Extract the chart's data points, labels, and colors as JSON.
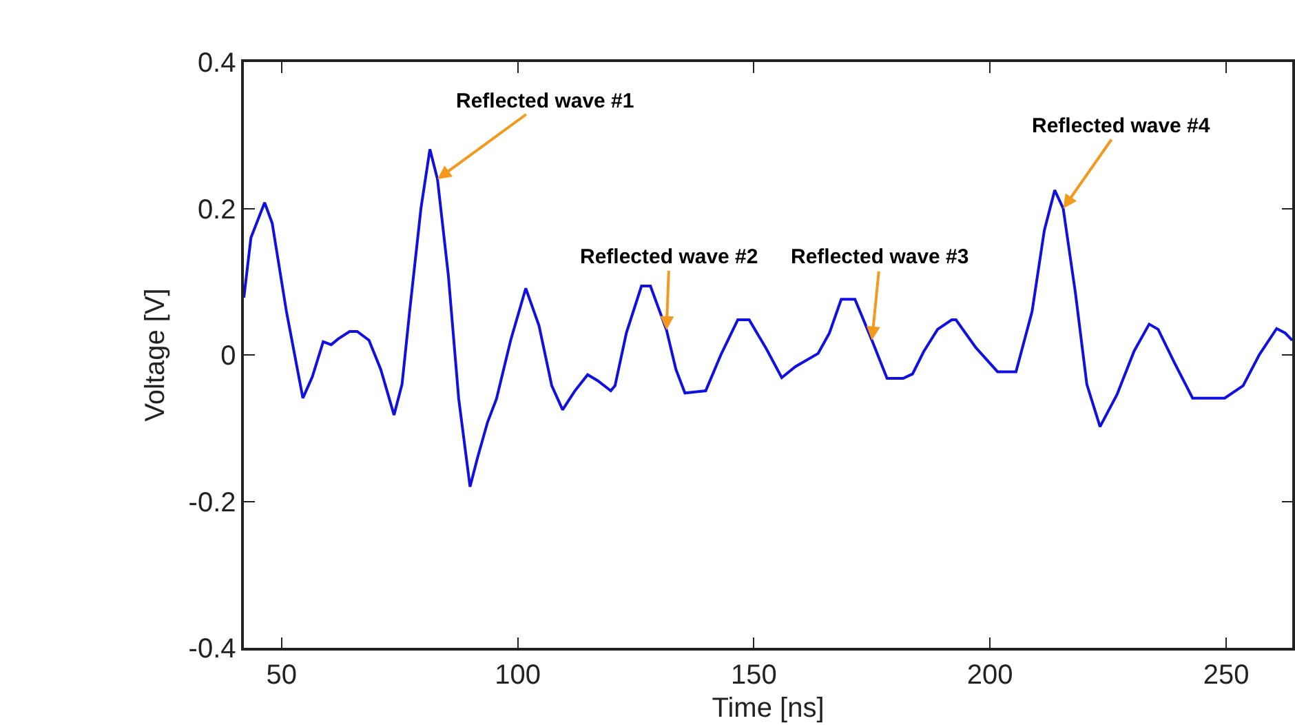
{
  "chart_data": {
    "type": "line",
    "xlabel": "Time [ns]",
    "ylabel": "Voltage [V]",
    "xlim": [
      42,
      264
    ],
    "xticks": [
      50,
      100,
      150,
      200,
      250
    ],
    "ylim": [
      -0.4,
      0.4
    ],
    "yticks": [
      -0.4,
      -0.2,
      0,
      0.2,
      0.4
    ],
    "grid": false,
    "marker": "none",
    "line_style": "solid",
    "series": [
      {
        "color": "#1010e0",
        "x": [
          42,
          43.5,
          46.4,
          48,
          51,
          54.5,
          56.5,
          58.8,
          60.5,
          62,
          64.4,
          66,
          68.5,
          71,
          73.8,
          75.5,
          77.1,
          79.5,
          81.4,
          83,
          85.3,
          87.5,
          89.9,
          91.5,
          93.6,
          95.5,
          98.5,
          101.7,
          104.5,
          107.2,
          109.5,
          112,
          114.8,
          116.9,
          119.7,
          120.6,
          123,
          126.2,
          128.1,
          131.5,
          133.5,
          135.4,
          139.8,
          143,
          146.6,
          149,
          152.5,
          155.9,
          158.8,
          163.6,
          166,
          168.5,
          171.4,
          175,
          178.2,
          181.6,
          183.6,
          186,
          188.9,
          191.9,
          192.8,
          197,
          201.6,
          205.5,
          208.9,
          211.5,
          213.7,
          215.5,
          218.1,
          220.5,
          223.3,
          226.9,
          230.5,
          233.7,
          235.6,
          239,
          242.9,
          249.7,
          253.6,
          257,
          260.7,
          262.5,
          264
        ],
        "values": [
          0.078,
          0.16,
          0.208,
          0.18,
          0.06,
          -0.059,
          -0.03,
          0.018,
          0.014,
          0.022,
          0.032,
          0.032,
          0.02,
          -0.02,
          -0.082,
          -0.04,
          0.059,
          0.2,
          0.281,
          0.24,
          0.109,
          -0.06,
          -0.18,
          -0.14,
          -0.092,
          -0.06,
          0.02,
          0.091,
          0.04,
          -0.042,
          -0.075,
          -0.05,
          -0.027,
          -0.035,
          -0.049,
          -0.042,
          0.03,
          0.094,
          0.094,
          0.034,
          -0.02,
          -0.052,
          -0.049,
          0,
          0.048,
          0.048,
          0.01,
          -0.031,
          -0.016,
          0.002,
          0.03,
          0.076,
          0.076,
          0.02,
          -0.032,
          -0.032,
          -0.026,
          0.005,
          0.035,
          0.048,
          0.048,
          0.01,
          -0.023,
          -0.023,
          0.059,
          0.17,
          0.225,
          0.2,
          0.084,
          -0.04,
          -0.098,
          -0.054,
          0.005,
          0.042,
          0.035,
          -0.01,
          -0.059,
          -0.059,
          -0.042,
          0,
          0.036,
          0.03,
          0.02
        ]
      }
    ],
    "annotations": [
      {
        "text": "Reflected wave #1",
        "x": 83,
        "y": 0.24
      },
      {
        "text": "Reflected wave #2",
        "x": 131.5,
        "y": 0.034
      },
      {
        "text": "Reflected wave #3",
        "x": 175,
        "y": 0.02
      },
      {
        "text": "Reflected wave #4",
        "x": 215.5,
        "y": 0.2
      }
    ]
  }
}
